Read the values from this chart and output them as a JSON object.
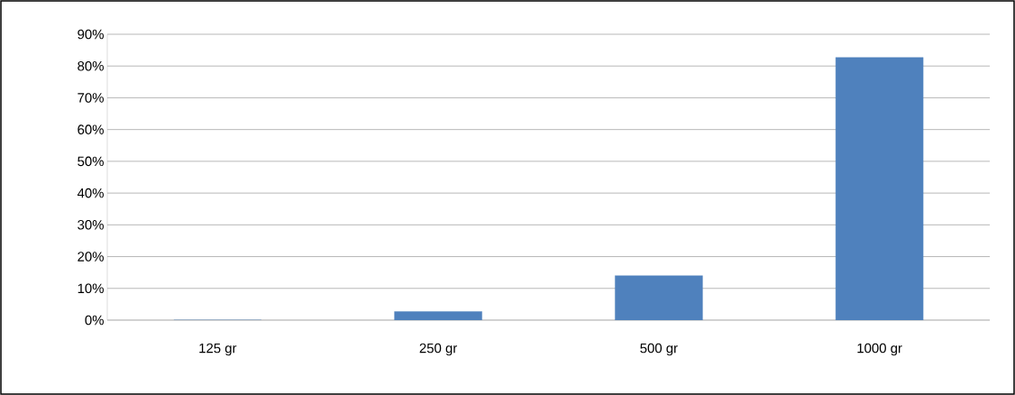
{
  "chart_data": {
    "type": "bar",
    "categories": [
      "125 gr",
      "250 gr",
      "500 gr",
      "1000 gr"
    ],
    "values": [
      0,
      2.7,
      14.0,
      82.7
    ],
    "color": "#4f81bd",
    "ylim": [
      0,
      90
    ],
    "yticks": [
      {
        "value": 0,
        "label": "0%"
      },
      {
        "value": 10,
        "label": "10%"
      },
      {
        "value": 20,
        "label": "20%"
      },
      {
        "value": 30,
        "label": "30%"
      },
      {
        "value": 40,
        "label": "40%"
      },
      {
        "value": 50,
        "label": "50%"
      },
      {
        "value": 60,
        "label": "60%"
      },
      {
        "value": 70,
        "label": "70%"
      },
      {
        "value": 80,
        "label": "80%"
      },
      {
        "value": 90,
        "label": "90%"
      }
    ],
    "grid": "y"
  }
}
